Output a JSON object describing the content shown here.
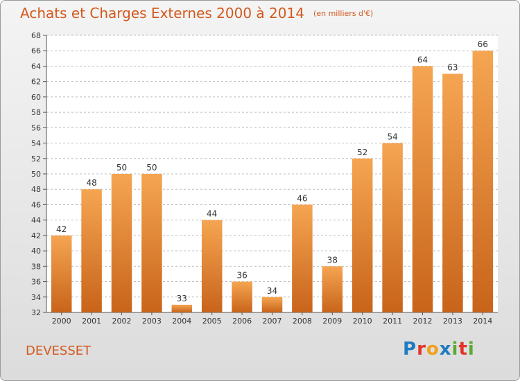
{
  "title": "Achats et Charges Externes 2000 à 2014",
  "subtitle": "(en milliers d'€)",
  "commune": "DEVESSET",
  "logo": {
    "text": "Proxiti",
    "letters": [
      "P",
      "r",
      "o",
      "x",
      "i",
      "t",
      "i"
    ],
    "colors": [
      "#1e7bc0",
      "#e2342b",
      "#f3a01b",
      "#1e7bc0",
      "#5aaa32",
      "#e2342b",
      "#5aaa32"
    ]
  },
  "colors": {
    "title": "#d3581c",
    "bar_top": "#f5a552",
    "bar_bottom": "#c8641a",
    "grid": "#bdbdbd",
    "axis_text": "#333333"
  },
  "chart_data": {
    "type": "bar",
    "categories": [
      "2000",
      "2001",
      "2002",
      "2003",
      "2004",
      "2005",
      "2006",
      "2007",
      "2008",
      "2009",
      "2010",
      "2011",
      "2012",
      "2013",
      "2014"
    ],
    "values": [
      42,
      48,
      50,
      50,
      33,
      44,
      36,
      34,
      46,
      38,
      52,
      54,
      64,
      63,
      66
    ],
    "ylim": [
      32,
      68
    ],
    "ytick_step": 2,
    "grid": "dashed horizontal",
    "data_labels": true
  }
}
